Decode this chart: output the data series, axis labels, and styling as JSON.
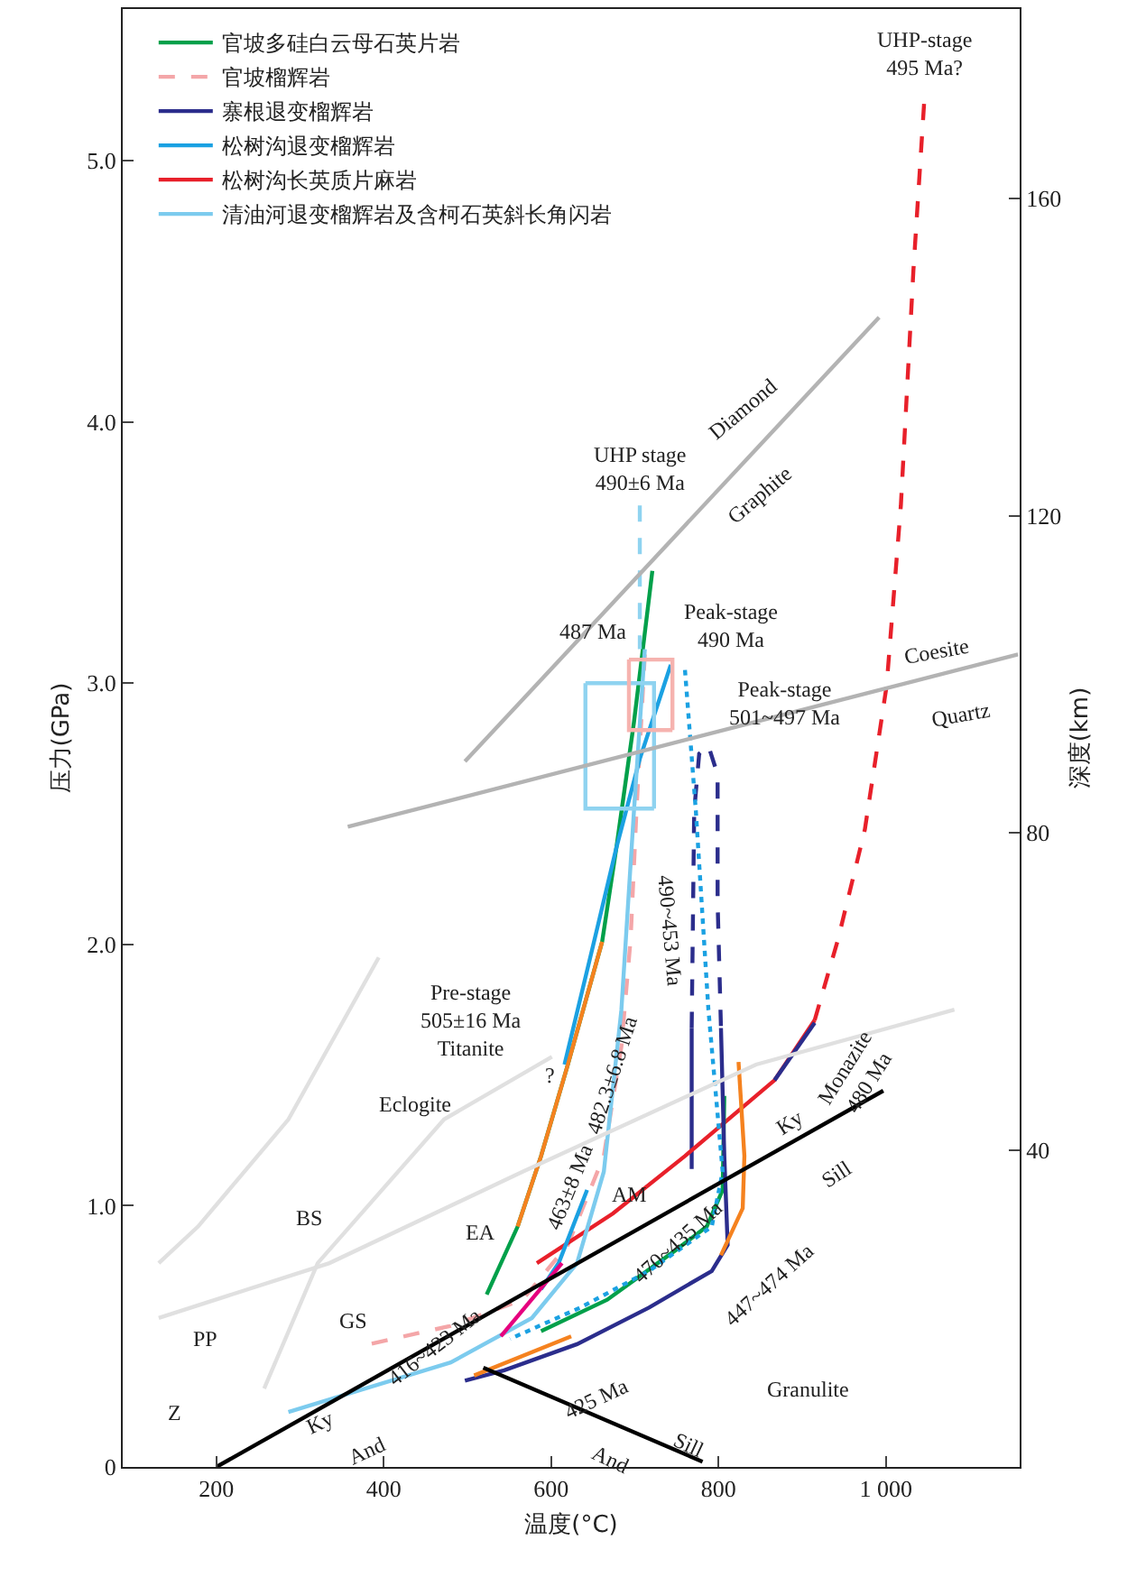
{
  "chart_data": {
    "type": "line",
    "xlabel": "温度(°C)",
    "ylabel": "压力(GPa)",
    "y2label": "深度(km)",
    "xlim": [
      88,
      1160
    ],
    "ylim": [
      0,
      5.58
    ],
    "y2lim": [
      0,
      183.9
    ],
    "xticks": [
      200,
      400,
      600,
      800,
      {
        "value": 1000,
        "label": "1 000"
      }
    ],
    "yticks": [
      0,
      {
        "value": 1,
        "label": "1.0"
      },
      {
        "value": 2,
        "label": "2.0"
      },
      {
        "value": 3,
        "label": "3.0"
      },
      {
        "value": 4,
        "label": "4.0"
      },
      {
        "value": 5,
        "label": "5.0"
      }
    ],
    "y2ticks": [
      40,
      80,
      120,
      160
    ],
    "grid": false,
    "legend": "top left",
    "marker": "none",
    "series": [
      {
        "name": "官坡多硅白云母石英片岩",
        "color": "#00a04a",
        "line_style": "solid",
        "x": [
          721,
          699,
          678,
          661,
          620,
          588,
          560,
          523
        ],
        "values": [
          3.43,
          2.85,
          2.37,
          2.01,
          1.54,
          1.19,
          0.92,
          0.66
        ]
      },
      {
        "name": "官坡榴辉岩",
        "color": "#f4a6a8",
        "line_style": "dashed",
        "x": [
          712,
          702,
          695,
          684,
          663,
          620,
          566,
          480,
          383
        ],
        "values": [
          3.11,
          2.51,
          2.02,
          1.61,
          1.19,
          0.85,
          0.64,
          0.54,
          0.47
        ]
      },
      {
        "name": "寨根退变榴辉岩",
        "color": "#2b2d8c",
        "line_style": "solid",
        "x": [
          768,
          768
        ],
        "values": [
          1.14,
          1.68
        ]
      },
      {
        "name": "松树沟退变榴辉岩",
        "color": "#1ba1e2",
        "line_style": "solid",
        "x": [
          743,
          706,
          678,
          652,
          616
        ],
        "values": [
          3.07,
          2.71,
          2.37,
          2.02,
          1.54
        ]
      },
      {
        "name": "松树沟长英质片麻岩",
        "color": "#e8202a",
        "line_style": "solid",
        "x": [
          583,
          674,
          760,
          867,
          915
        ],
        "values": [
          0.78,
          0.97,
          1.19,
          1.48,
          1.71
        ]
      },
      {
        "name": "清油河退变榴辉岩及含柯石英斜长角闪岩",
        "color": "#7ccbee",
        "line_style": "solid",
        "x": [
          712,
          699,
          684,
          663,
          631,
          577,
          480,
          286
        ],
        "values": [
          3.13,
          2.51,
          1.75,
          1.13,
          0.78,
          0.57,
          0.4,
          0.21
        ]
      },
      {
        "color": "#8fd3f0",
        "line_style": "dashed",
        "x": [
          706,
          706
        ],
        "values": [
          3.68,
          3.13
        ]
      },
      {
        "color": "#8fd3f0",
        "line_style": "solid",
        "x": [
          641,
          723,
          723
        ],
        "values": [
          3.0,
          3.0,
          2.52
        ]
      },
      {
        "color": "#8fd3f0",
        "line_style": "solid",
        "x": [
          641,
          641,
          723
        ],
        "values": [
          3.0,
          2.52,
          2.52
        ]
      },
      {
        "color": "#f6b3af",
        "line_style": "solid",
        "x": [
          693,
          745,
          745
        ],
        "values": [
          3.09,
          3.09,
          2.82
        ]
      },
      {
        "color": "#f6b3af",
        "line_style": "solid",
        "x": [
          693,
          693,
          745
        ],
        "values": [
          3.09,
          2.82,
          2.82
        ]
      },
      {
        "color": "#00a04a",
        "line_style": "solid",
        "x": [
          807,
          805,
          786,
          749,
          667,
          588
        ],
        "values": [
          1.42,
          1.06,
          0.92,
          0.83,
          0.64,
          0.52
        ]
      },
      {
        "color": "#2b2d8c",
        "line_style": "dashed",
        "x": [
          768,
          771,
          777,
          788,
          799,
          799,
          803
        ],
        "values": [
          1.68,
          2.51,
          2.73,
          2.76,
          2.65,
          2.16,
          1.68
        ]
      },
      {
        "color": "#2b2d8c",
        "line_style": "solid",
        "x": [
          803,
          807,
          811,
          792,
          717,
          631,
          544,
          497
        ],
        "values": [
          1.68,
          1.19,
          0.85,
          0.75,
          0.61,
          0.47,
          0.37,
          0.33
        ]
      },
      {
        "color": "#2b2d8c",
        "line_style": "solid",
        "x": [
          867,
          915
        ],
        "values": [
          1.48,
          1.7
        ]
      },
      {
        "color": "#1ba1e2",
        "line_style": "solid",
        "x": [
          643,
          609,
          588
        ],
        "values": [
          1.06,
          0.78,
          0.68
        ]
      },
      {
        "color": "#1ba1e2",
        "line_style": "dotted",
        "x": [
          760,
          773,
          788,
          805,
          792,
          717,
          635,
          551
        ],
        "values": [
          3.05,
          2.51,
          1.75,
          1.13,
          0.92,
          0.75,
          0.61,
          0.49
        ]
      },
      {
        "color": "#e8202a",
        "line_style": "dashed",
        "x": [
          915,
          943,
          975,
          1001,
          1018,
          1033,
          1046
        ],
        "values": [
          1.71,
          2.02,
          2.44,
          2.99,
          3.68,
          4.58,
          5.23
        ]
      },
      {
        "color": "#f5821f",
        "line_style": "solid",
        "x": [
          661,
          620,
          588,
          560
        ],
        "values": [
          2.01,
          1.54,
          1.19,
          0.92
        ]
      },
      {
        "color": "#f5821f",
        "line_style": "solid",
        "x": [
          824,
          831,
          829,
          803
        ],
        "values": [
          1.55,
          1.19,
          0.99,
          0.81
        ]
      },
      {
        "color": "#f5821f",
        "line_style": "solid",
        "x": [
          624,
          508
        ],
        "values": [
          0.5,
          0.35
        ]
      },
      {
        "color": "#e6007e",
        "line_style": "solid",
        "x": [
          613,
          540
        ],
        "values": [
          0.78,
          0.5
        ]
      },
      {
        "color": "#b3b3b3",
        "line_style": "solid",
        "x": [
          497,
          992
        ],
        "values": [
          2.7,
          4.4
        ]
      },
      {
        "color": "#b3b3b3",
        "line_style": "solid",
        "x": [
          357,
          1158
        ],
        "values": [
          2.45,
          3.11
        ]
      },
      {
        "color": "#000000",
        "line_style": "solid",
        "x": [
          200,
          997
        ],
        "values": [
          0,
          1.44
        ]
      },
      {
        "color": "#000000",
        "line_style": "solid",
        "x": [
          519,
          781
        ],
        "values": [
          0.38,
          0.02
        ]
      },
      {
        "color": "#e0e0e0",
        "line_style": "solid",
        "x": [
          394,
          286,
          178,
          131
        ],
        "values": [
          1.95,
          1.33,
          0.92,
          0.78
        ]
      },
      {
        "color": "#e0e0e0",
        "line_style": "solid",
        "x": [
          131,
          335,
          566,
          845,
          1082
        ],
        "values": [
          0.57,
          0.78,
          1.13,
          1.54,
          1.75
        ]
      },
      {
        "color": "#e0e0e0",
        "line_style": "solid",
        "x": [
          601,
          472,
          321,
          257
        ],
        "values": [
          1.57,
          1.33,
          0.78,
          0.3
        ]
      }
    ],
    "annotations": [
      "UHP-stage\n495 Ma?",
      "Diamond",
      "Graphite",
      "Coesite",
      "Quartz",
      "UHP stage\n490±6 Ma",
      "487 Ma",
      "Peak-stage\n490 Ma",
      "Peak-stage\n501~497 Ma",
      "490~453 Ma",
      "Pre-stage\n505±16 Ma\nTitanite",
      "?",
      "482.3±6.8 Ma",
      "Eclogite",
      "BS",
      "PP",
      "Z",
      "GS",
      "EA",
      "AM",
      "463±8 Ma",
      "470~435 Ma",
      "416~423 Ma",
      "425 Ma",
      "447~474 Ma",
      "Granulite",
      "Ky",
      "And",
      "And",
      "Sill",
      "Ky",
      "Sill",
      "Monazite\n480 Ma"
    ]
  }
}
